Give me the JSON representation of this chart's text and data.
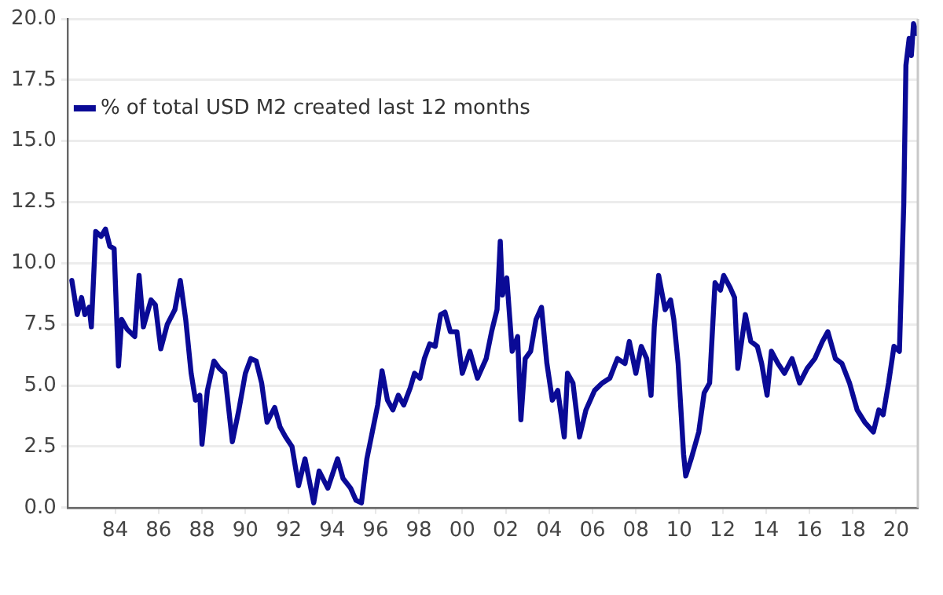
{
  "chart_data": {
    "type": "line",
    "legend": "top left",
    "grid": "y",
    "marker": "none",
    "line_style": "solid",
    "xlim": [
      1981.8,
      2021.0
    ],
    "xticks": [
      {
        "value": 1984,
        "label": "84"
      },
      {
        "value": 1986,
        "label": "86"
      },
      {
        "value": 1988,
        "label": "88"
      },
      {
        "value": 1990,
        "label": "90"
      },
      {
        "value": 1992,
        "label": "92"
      },
      {
        "value": 1994,
        "label": "94"
      },
      {
        "value": 1996,
        "label": "96"
      },
      {
        "value": 1998,
        "label": "98"
      },
      {
        "value": 2000,
        "label": "00"
      },
      {
        "value": 2002,
        "label": "02"
      },
      {
        "value": 2004,
        "label": "04"
      },
      {
        "value": 2006,
        "label": "06"
      },
      {
        "value": 2008,
        "label": "08"
      },
      {
        "value": 2010,
        "label": "10"
      },
      {
        "value": 2012,
        "label": "12"
      },
      {
        "value": 2014,
        "label": "14"
      },
      {
        "value": 2016,
        "label": "16"
      },
      {
        "value": 2018,
        "label": "18"
      },
      {
        "value": 2020,
        "label": "20"
      }
    ],
    "ylim": [
      0,
      20
    ],
    "yticks": [
      {
        "value": 0,
        "label": "0.0"
      },
      {
        "value": 2.5,
        "label": "2.5"
      },
      {
        "value": 5,
        "label": "5.0"
      },
      {
        "value": 7.5,
        "label": "7.5"
      },
      {
        "value": 10,
        "label": "10.0"
      },
      {
        "value": 12.5,
        "label": "12.5"
      },
      {
        "value": 15,
        "label": "15.0"
      },
      {
        "value": 17.5,
        "label": "17.5"
      },
      {
        "value": 20,
        "label": "20.0"
      }
    ],
    "x": [
      1982.0,
      1982.25,
      1982.45,
      1982.6,
      1982.8,
      1982.9,
      1983.1,
      1983.35,
      1983.55,
      1983.75,
      1983.95,
      1984.15,
      1984.3,
      1984.55,
      1984.9,
      1985.1,
      1985.3,
      1985.65,
      1985.85,
      1986.1,
      1986.4,
      1986.75,
      1987.0,
      1987.25,
      1987.5,
      1987.7,
      1987.9,
      1988.0,
      1988.25,
      1988.55,
      1988.8,
      1989.05,
      1989.4,
      1989.7,
      1990.0,
      1990.25,
      1990.5,
      1990.75,
      1991.0,
      1991.35,
      1991.6,
      1991.85,
      1992.15,
      1992.45,
      1992.75,
      1993.15,
      1993.4,
      1993.8,
      1994.25,
      1994.5,
      1994.85,
      1995.1,
      1995.35,
      1995.6,
      1995.85,
      1996.1,
      1996.3,
      1996.55,
      1996.8,
      1997.05,
      1997.3,
      1997.6,
      1997.8,
      1998.05,
      1998.25,
      1998.5,
      1998.75,
      1999.0,
      1999.2,
      1999.45,
      1999.75,
      2000.0,
      2000.35,
      2000.7,
      2001.1,
      2001.35,
      2001.6,
      2001.75,
      2001.85,
      2002.05,
      2002.3,
      2002.55,
      2002.7,
      2002.9,
      2003.15,
      2003.4,
      2003.65,
      2003.9,
      2004.15,
      2004.4,
      2004.7,
      2004.85,
      2005.1,
      2005.4,
      2005.7,
      2006.1,
      2006.45,
      2006.8,
      2007.15,
      2007.5,
      2007.7,
      2008.0,
      2008.25,
      2008.5,
      2008.7,
      2008.85,
      2009.05,
      2009.35,
      2009.6,
      2009.75,
      2009.95,
      2010.2,
      2010.3,
      2010.55,
      2010.9,
      2011.15,
      2011.4,
      2011.65,
      2011.9,
      2012.05,
      2012.35,
      2012.55,
      2012.7,
      2013.05,
      2013.3,
      2013.6,
      2013.8,
      2014.05,
      2014.25,
      2014.55,
      2014.85,
      2015.2,
      2015.55,
      2015.9,
      2016.25,
      2016.6,
      2016.85,
      2017.2,
      2017.5,
      2017.85,
      2018.2,
      2018.55,
      2018.95,
      2019.2,
      2019.4,
      2019.65,
      2019.9,
      2020.15,
      2020.35,
      2020.45,
      2020.6,
      2020.7,
      2020.8,
      2020.95
    ],
    "series": [
      {
        "name": "% of total USD M2 created last 12 months",
        "color": "#0a0a96",
        "values": [
          9.3,
          7.9,
          8.6,
          7.9,
          8.2,
          7.4,
          11.3,
          11.1,
          11.4,
          10.7,
          10.6,
          5.8,
          7.7,
          7.3,
          7.0,
          9.5,
          7.4,
          8.5,
          8.3,
          6.5,
          7.5,
          8.1,
          9.3,
          7.7,
          5.5,
          4.4,
          4.6,
          2.6,
          4.8,
          6.0,
          5.7,
          5.5,
          2.7,
          4.0,
          5.5,
          6.1,
          6.0,
          5.1,
          3.5,
          4.1,
          3.3,
          2.9,
          2.5,
          0.9,
          2.0,
          0.2,
          1.5,
          0.8,
          2.0,
          1.2,
          0.8,
          0.3,
          0.2,
          2.0,
          3.1,
          4.2,
          5.6,
          4.4,
          4.0,
          4.6,
          4.2,
          4.9,
          5.5,
          5.3,
          6.1,
          6.7,
          6.6,
          7.9,
          8.0,
          7.2,
          7.2,
          5.5,
          6.4,
          5.3,
          6.1,
          7.2,
          8.1,
          10.9,
          8.7,
          9.4,
          6.4,
          7.0,
          3.6,
          6.1,
          6.4,
          7.7,
          8.2,
          5.9,
          4.4,
          4.8,
          2.9,
          5.5,
          5.1,
          2.9,
          4.0,
          4.8,
          5.1,
          5.3,
          6.1,
          5.9,
          6.8,
          5.5,
          6.6,
          6.1,
          4.6,
          7.4,
          9.5,
          8.1,
          8.5,
          7.7,
          5.9,
          2.2,
          1.3,
          2.0,
          3.1,
          4.7,
          5.1,
          9.2,
          8.9,
          9.5,
          9.0,
          8.6,
          5.7,
          7.9,
          6.8,
          6.6,
          5.9,
          4.6,
          6.4,
          5.9,
          5.5,
          6.1,
          5.1,
          5.7,
          6.1,
          6.8,
          7.2,
          6.1,
          5.9,
          5.1,
          4.0,
          3.5,
          3.1,
          4.0,
          3.8,
          5.1,
          6.6,
          6.4,
          12.4,
          18.1,
          19.2,
          18.5,
          19.8,
          19.4
        ]
      }
    ]
  }
}
